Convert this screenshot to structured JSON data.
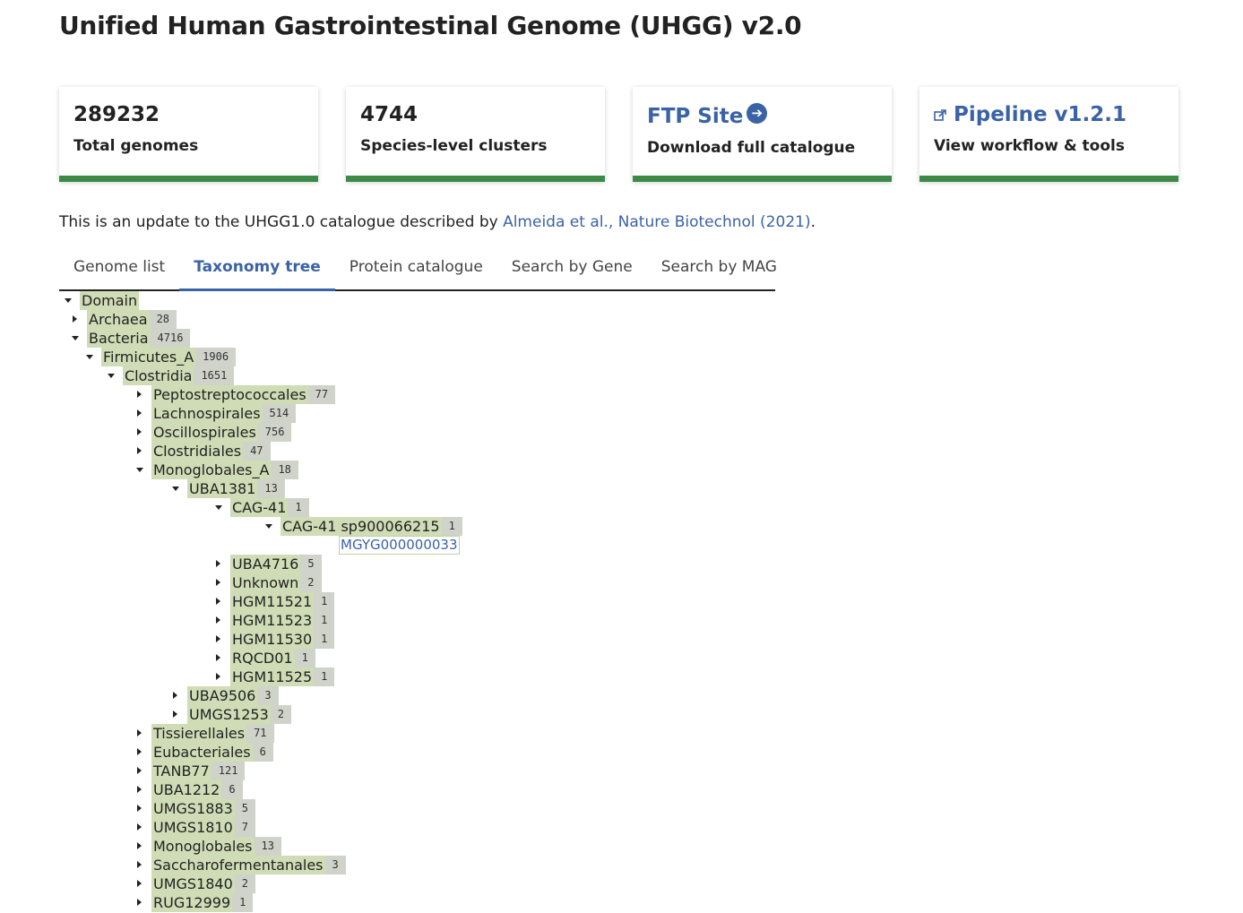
{
  "page": {
    "title": "Unified Human Gastrointestinal Genome (UHGG) v2.0"
  },
  "cards": [
    {
      "value": "289232",
      "label": "Total genomes"
    },
    {
      "value": "4744",
      "label": "Species-level clusters"
    },
    {
      "value": "FTP Site",
      "label": "Download full catalogue",
      "icon": "arrow-right-circle-icon"
    },
    {
      "value": "Pipeline v1.2.1",
      "label": "View workflow & tools",
      "icon": "external-link-icon"
    }
  ],
  "intro": {
    "text": "This is an update to the UHGG1.0 catalogue described by",
    "link": "Almeida et al., Nature Biotechnol (2021)",
    "suffix": "."
  },
  "tabs": [
    {
      "label": "Genome list",
      "active": false
    },
    {
      "label": "Taxonomy tree",
      "active": true
    },
    {
      "label": "Protein catalogue",
      "active": false
    },
    {
      "label": "Search by Gene",
      "active": false
    },
    {
      "label": "Search by MAG",
      "active": false
    }
  ],
  "tree": [
    {
      "label": "Domain",
      "count": "",
      "depth": 0,
      "open": true
    },
    {
      "label": "Archaea",
      "count": "28",
      "depth": 1,
      "open": false
    },
    {
      "label": "Bacteria",
      "count": "4716",
      "depth": 1,
      "open": true
    },
    {
      "label": "Firmicutes_A",
      "count": "1906",
      "depth": 2,
      "open": true
    },
    {
      "label": "Clostridia",
      "count": "1651",
      "depth": 3,
      "open": true
    },
    {
      "label": "Peptostreptococcales",
      "count": "77",
      "depth": 4,
      "open": false
    },
    {
      "label": "Lachnospirales",
      "count": "514",
      "depth": 4,
      "open": false
    },
    {
      "label": "Oscillospirales",
      "count": "756",
      "depth": 4,
      "open": false
    },
    {
      "label": "Clostridiales",
      "count": "47",
      "depth": 4,
      "open": false
    },
    {
      "label": "Monoglobales_A",
      "count": "18",
      "depth": 4,
      "open": true
    },
    {
      "label": "UBA1381",
      "count": "13",
      "depth": 5,
      "open": true
    },
    {
      "label": "CAG-41",
      "count": "1",
      "depth": 6,
      "open": true
    },
    {
      "label": "CAG-41 sp900066215",
      "count": "1",
      "depth": 7,
      "open": true
    },
    {
      "label": "MGYG000000033",
      "count": "",
      "depth": 8,
      "leaf": true
    },
    {
      "label": "UBA4716",
      "count": "5",
      "depth": 6,
      "open": false
    },
    {
      "label": "Unknown",
      "count": "2",
      "depth": 6,
      "open": false
    },
    {
      "label": "HGM11521",
      "count": "1",
      "depth": 6,
      "open": false
    },
    {
      "label": "HGM11523",
      "count": "1",
      "depth": 6,
      "open": false
    },
    {
      "label": "HGM11530",
      "count": "1",
      "depth": 6,
      "open": false
    },
    {
      "label": "RQCD01",
      "count": "1",
      "depth": 6,
      "open": false
    },
    {
      "label": "HGM11525",
      "count": "1",
      "depth": 6,
      "open": false
    },
    {
      "label": "UBA9506",
      "count": "3",
      "depth": 5,
      "open": false
    },
    {
      "label": "UMGS1253",
      "count": "2",
      "depth": 5,
      "open": false
    },
    {
      "label": "Tissierellales",
      "count": "71",
      "depth": 4,
      "open": false
    },
    {
      "label": "Eubacteriales",
      "count": "6",
      "depth": 4,
      "open": false
    },
    {
      "label": "TANB77",
      "count": "121",
      "depth": 4,
      "open": false
    },
    {
      "label": "UBA1212",
      "count": "6",
      "depth": 4,
      "open": false
    },
    {
      "label": "UMGS1883",
      "count": "5",
      "depth": 4,
      "open": false
    },
    {
      "label": "UMGS1810",
      "count": "7",
      "depth": 4,
      "open": false
    },
    {
      "label": "Monoglobales",
      "count": "13",
      "depth": 4,
      "open": false
    },
    {
      "label": "Saccharofermentanales",
      "count": "3",
      "depth": 4,
      "open": false
    },
    {
      "label": "UMGS1840",
      "count": "2",
      "depth": 4,
      "open": false
    },
    {
      "label": "RUG12999",
      "count": "1",
      "depth": 4,
      "open": false
    }
  ]
}
